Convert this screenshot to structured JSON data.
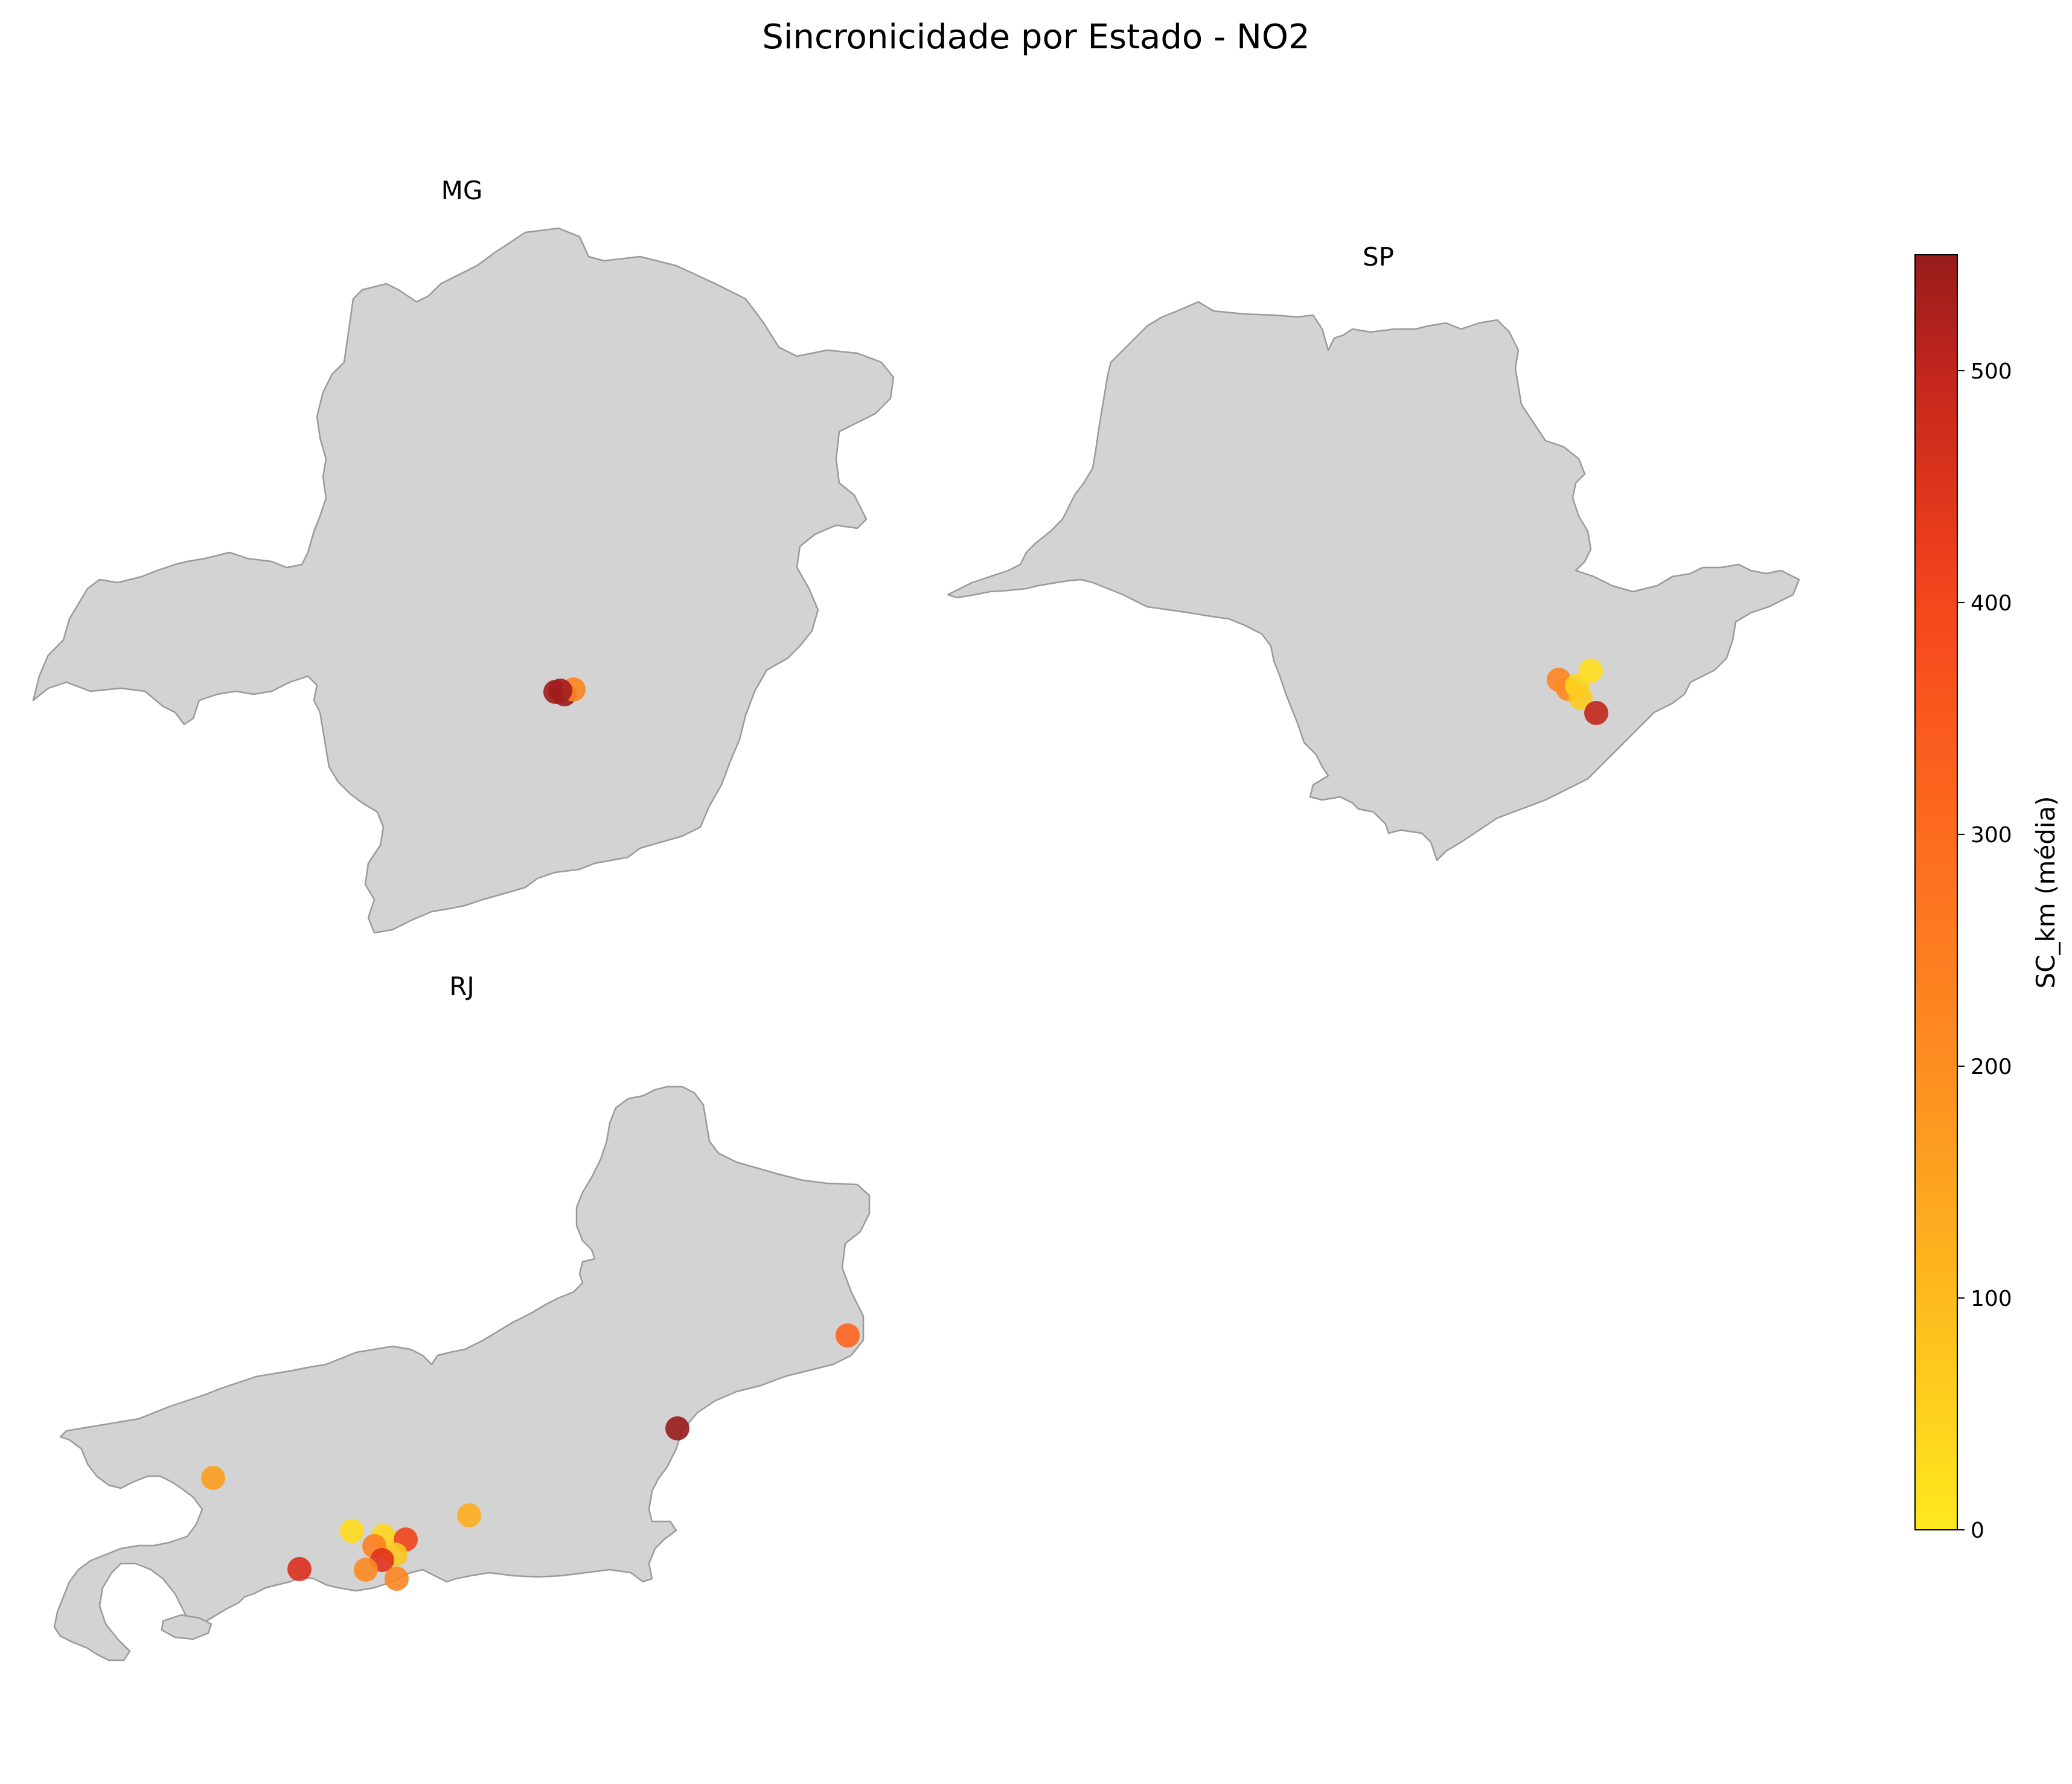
{
  "title": "Sincronicidade por Estado - NO2",
  "panels": [
    {
      "label": "MG",
      "points": [
        {
          "value": 520
        },
        {
          "value": 540
        },
        {
          "value": 200
        },
        {
          "value": 510
        }
      ]
    },
    {
      "label": "SP",
      "points": [
        {
          "value": 200
        },
        {
          "value": 190
        },
        {
          "value": 40
        },
        {
          "value": 20
        },
        {
          "value": 60
        },
        {
          "value": 430
        }
      ]
    },
    {
      "label": "RJ",
      "points": [
        {
          "value": 150
        },
        {
          "value": 260
        },
        {
          "value": 545
        },
        {
          "value": 120
        },
        {
          "value": 30
        },
        {
          "value": 40
        },
        {
          "value": 210
        },
        {
          "value": 330
        },
        {
          "value": 70
        },
        {
          "value": 380
        },
        {
          "value": 190
        },
        {
          "value": 390
        },
        {
          "value": 200
        }
      ]
    }
  ],
  "colorbar": {
    "label": "SC_km (média)",
    "min": 0,
    "max": 550,
    "ticks": [
      "0",
      "100",
      "200",
      "300",
      "400",
      "500"
    ],
    "colors": [
      "#ffe91d",
      "#fdbb1e",
      "#fd8e21",
      "#fd5a1f",
      "#e8361c",
      "#b0201e",
      "#971c1c"
    ]
  }
}
